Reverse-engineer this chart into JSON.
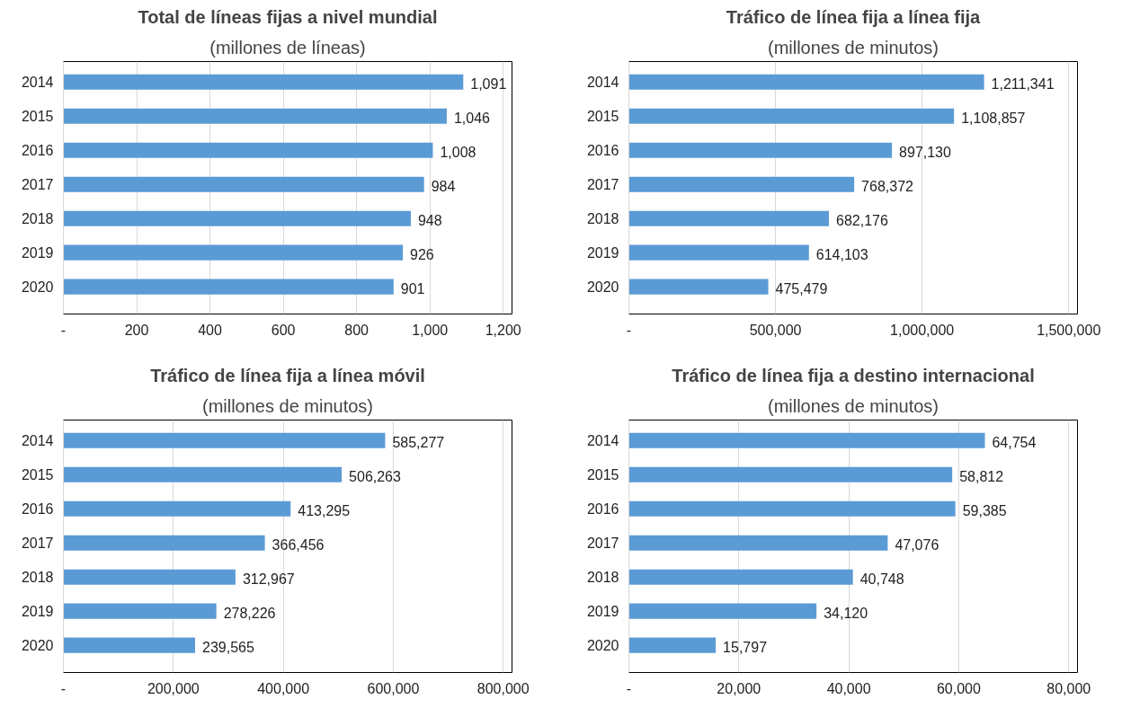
{
  "chart_data": [
    {
      "type": "bar",
      "orientation": "horizontal",
      "title": "Total de líneas fijas a nivel mundial",
      "subtitle": "(millones de líneas)",
      "categories": [
        "2014",
        "2015",
        "2016",
        "2017",
        "2018",
        "2019",
        "2020"
      ],
      "values": [
        1091,
        1046,
        1008,
        984,
        948,
        926,
        901
      ],
      "value_labels": [
        "1,091",
        "1,046",
        "1,008",
        "984",
        "948",
        "926",
        "901"
      ],
      "color": "#5b9bd5",
      "xlim": [
        0,
        1200
      ],
      "xticks": [
        {
          "value": 0,
          "label": "-"
        },
        200,
        400,
        600,
        800,
        {
          "value": 1000,
          "label": "1,000"
        },
        {
          "value": 1200,
          "label": "1,200"
        }
      ],
      "grid": "x"
    },
    {
      "type": "bar",
      "orientation": "horizontal",
      "title": "Tráfico de línea fija a línea fija",
      "subtitle": "(millones de minutos)",
      "categories": [
        "2014",
        "2015",
        "2016",
        "2017",
        "2018",
        "2019",
        "2020"
      ],
      "values": [
        1211341,
        1108857,
        897130,
        768372,
        682176,
        614103,
        475479
      ],
      "value_labels": [
        "1,211,341",
        "1,108,857",
        "897,130",
        "768,372",
        "682,176",
        "614,103",
        "475,479"
      ],
      "color": "#5b9bd5",
      "xlim": [
        0,
        1500000
      ],
      "xticks": [
        {
          "value": 0,
          "label": "-"
        },
        {
          "value": 500000,
          "label": "500,000"
        },
        {
          "value": 1000000,
          "label": "1,000,000"
        },
        {
          "value": 1500000,
          "label": "1,500,000"
        }
      ],
      "grid": "x"
    },
    {
      "type": "bar",
      "orientation": "horizontal",
      "title": "Tráfico de línea fija a línea móvil",
      "subtitle": "(millones de minutos)",
      "categories": [
        "2014",
        "2015",
        "2016",
        "2017",
        "2018",
        "2019",
        "2020"
      ],
      "values": [
        585277,
        506263,
        413295,
        366456,
        312967,
        278226,
        239565
      ],
      "value_labels": [
        "585,277",
        "506,263",
        "413,295",
        "366,456",
        "312,967",
        "278,226",
        "239,565"
      ],
      "color": "#5b9bd5",
      "xlim": [
        0,
        800000
      ],
      "xticks": [
        {
          "value": 0,
          "label": "-"
        },
        {
          "value": 200000,
          "label": "200,000"
        },
        {
          "value": 400000,
          "label": "400,000"
        },
        {
          "value": 600000,
          "label": "600,000"
        },
        {
          "value": 800000,
          "label": "800,000"
        }
      ],
      "grid": "x"
    },
    {
      "type": "bar",
      "orientation": "horizontal",
      "title": "Tráfico de línea fija a destino internacional",
      "subtitle": "(millones de minutos)",
      "categories": [
        "2014",
        "2015",
        "2016",
        "2017",
        "2018",
        "2019",
        "2020"
      ],
      "values": [
        64754,
        58812,
        59385,
        47076,
        40748,
        34120,
        15797
      ],
      "value_labels": [
        "64,754",
        "58,812",
        "59,385",
        "47,076",
        "40,748",
        "34,120",
        "15,797"
      ],
      "color": "#5b9bd5",
      "xlim": [
        0,
        80000
      ],
      "xticks": [
        {
          "value": 0,
          "label": "-"
        },
        {
          "value": 20000,
          "label": "20,000"
        },
        {
          "value": 40000,
          "label": "40,000"
        },
        {
          "value": 60000,
          "label": "60,000"
        },
        {
          "value": 80000,
          "label": "80,000"
        }
      ],
      "grid": "x"
    }
  ]
}
